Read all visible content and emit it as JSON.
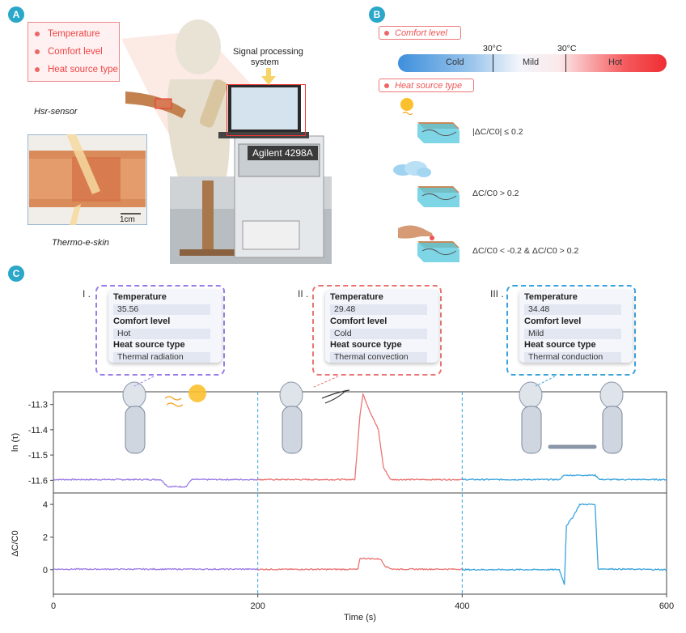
{
  "panels": {
    "a": "A",
    "b": "B",
    "c": "C"
  },
  "panel_a": {
    "legend_items": [
      "Temperature",
      "Comfort level",
      "Heat source type"
    ],
    "signal_label": "Signal processing system",
    "signal_line1": "Signal processing",
    "signal_line2": "system",
    "instrument": "Agilent 4298A",
    "hsr_sensor": "Hsr-sensor",
    "thermo_skin": "Thermo-e-skin",
    "scale_bar": "1cm"
  },
  "panel_b": {
    "comfort_pill": "Comfort level",
    "heat_pill": "Heat source type",
    "bar_labels": {
      "cold": "Cold",
      "mild": "Mild",
      "hot": "Hot"
    },
    "thresholds": [
      "30°C",
      "30°C"
    ],
    "rows": [
      {
        "source": "sun-icon",
        "condition": "|ΔC/C0| ≤ 0.2"
      },
      {
        "source": "cloud-icon",
        "condition": "ΔC/C0 > 0.2"
      },
      {
        "source": "finger-icon",
        "condition": "ΔC/C0 < -0.2 & ΔC/C0 > 0.2"
      }
    ]
  },
  "panel_c": {
    "cards": [
      {
        "roman": "I .",
        "temperature_label": "Temperature",
        "temperature": "35.56",
        "comfort_label": "Comfort level",
        "comfort": "Hot",
        "source_label": "Heat source type",
        "source": "Thermal radiation",
        "color": "#9b7ce6"
      },
      {
        "roman": "II .",
        "temperature_label": "Temperature",
        "temperature": "29.48",
        "comfort_label": "Comfort level",
        "comfort": "Cold",
        "source_label": "Heat source type",
        "source": "Thermal convection",
        "color": "#ea7474"
      },
      {
        "roman": "III .",
        "temperature_label": "Temperature",
        "temperature": "34.48",
        "comfort_label": "Comfort level",
        "comfort": "Mild",
        "source_label": "Heat source type",
        "source": "Thermal conduction",
        "color": "#3aa3dc"
      }
    ]
  },
  "chart_data": [
    {
      "type": "line",
      "ylabel": "ln (τ)",
      "xlim": [
        0,
        600
      ],
      "ylim": [
        -11.65,
        -11.25
      ],
      "yticks": [
        -11.3,
        -11.4,
        -11.5,
        -11.6
      ],
      "ytick_labels": [
        "-11.3",
        "-11.4",
        "-11.5",
        "-11.6"
      ],
      "segment_colors": [
        "#9b7ce6",
        "#ea7474",
        "#3aa3dc"
      ],
      "segments": [
        {
          "x": [
            0,
            105,
            112,
            130,
            135,
            200
          ],
          "y": [
            -11.597,
            -11.597,
            -11.625,
            -11.625,
            -11.597,
            -11.597
          ]
        },
        {
          "x": [
            200,
            295,
            300,
            303,
            310,
            318,
            323,
            330,
            400
          ],
          "y": [
            -11.597,
            -11.597,
            -11.34,
            -11.26,
            -11.33,
            -11.4,
            -11.55,
            -11.597,
            -11.597
          ]
        },
        {
          "x": [
            400,
            495,
            500,
            530,
            535,
            600
          ],
          "y": [
            -11.597,
            -11.597,
            -11.58,
            -11.58,
            -11.597,
            -11.597
          ]
        }
      ]
    },
    {
      "type": "line",
      "ylabel": "ΔC/C0",
      "xlabel": "Time (s)",
      "xlim": [
        0,
        600
      ],
      "ylim": [
        -1.5,
        4.7
      ],
      "xticks": [
        0,
        200,
        400,
        600
      ],
      "xtick_labels": [
        "0",
        "200",
        "400",
        "600"
      ],
      "yticks": [
        0,
        2,
        4
      ],
      "ytick_labels": [
        "0",
        "2",
        "4"
      ],
      "segment_colors": [
        "#9b7ce6",
        "#ea7474",
        "#3aa3dc"
      ],
      "segments": [
        {
          "x": [
            0,
            200
          ],
          "y": [
            0.03,
            0.03
          ]
        },
        {
          "x": [
            200,
            298,
            300,
            320,
            325,
            332,
            400
          ],
          "y": [
            0.02,
            0.02,
            0.7,
            0.65,
            0.2,
            0.03,
            0.03
          ]
        },
        {
          "x": [
            400,
            495,
            500,
            502,
            508,
            515,
            530,
            533,
            600
          ],
          "y": [
            0.0,
            0.0,
            -0.9,
            2.7,
            3.2,
            4.0,
            4.0,
            0.05,
            0.0
          ]
        }
      ]
    }
  ]
}
